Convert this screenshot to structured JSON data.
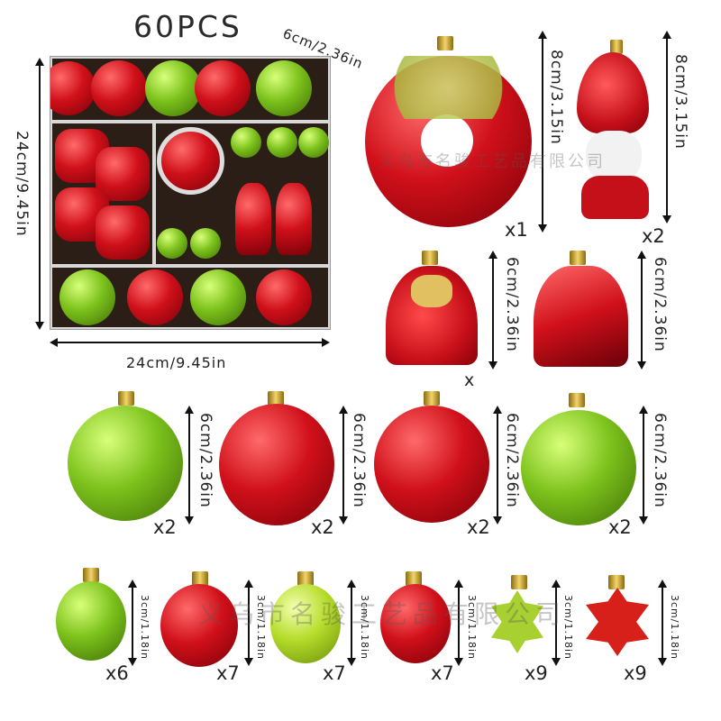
{
  "title": "60PCS",
  "box": {
    "width_label": "24cm/9.45in",
    "height_label": "24cm/9.45in",
    "depth_label": "6cm/2.36in"
  },
  "watermark": "义乌市名骏工艺品有限公司",
  "large_items": [
    {
      "name": "donut",
      "size": "8cm/3.15in",
      "qty": "x1",
      "color": "#d0101a"
    },
    {
      "name": "gnome",
      "size": "8cm/3.15in",
      "qty": "x2",
      "color": "#d0101a"
    },
    {
      "name": "gift-bag-gold-bow",
      "size": "6cm/2.36in",
      "qty": "x",
      "color": "#d0101a"
    },
    {
      "name": "gift-bag-red",
      "size": "6cm/2.36in",
      "qty": "",
      "color": "#d0101a"
    }
  ],
  "medium_balls": [
    {
      "name": "green-snowflake-ball",
      "size": "6cm/2.36in",
      "qty": "x2",
      "color": "#7cc21c"
    },
    {
      "name": "red-embossed-ball",
      "size": "6cm/2.36in",
      "qty": "x2",
      "color": "#d0101a"
    },
    {
      "name": "red-beaded-ball",
      "size": "6cm/2.36in",
      "qty": "x2",
      "color": "#d0101a"
    },
    {
      "name": "green-glitter-ball",
      "size": "6cm/2.36in",
      "qty": "x2",
      "color": "#7cc21c"
    }
  ],
  "small_items": [
    {
      "name": "green-matte-ball",
      "size": "3cm/1.18in",
      "qty": "x6",
      "color": "#7cc21c"
    },
    {
      "name": "red-matte-ball",
      "size": "3cm/1.18in",
      "qty": "x7",
      "color": "#d0101a"
    },
    {
      "name": "lime-shiny-ball",
      "size": "3cm/1.18in",
      "qty": "x7",
      "color": "#b5dc2a"
    },
    {
      "name": "red-shiny-ball",
      "size": "3cm/1.18in",
      "qty": "x7",
      "color": "#e0141e"
    },
    {
      "name": "green-snowflake",
      "size": "3cm/1.18in",
      "qty": "x9",
      "color": "#9ccc2a"
    },
    {
      "name": "red-snowflake",
      "size": "3cm/1.18in",
      "qty": "x9",
      "color": "#d8201a"
    }
  ]
}
